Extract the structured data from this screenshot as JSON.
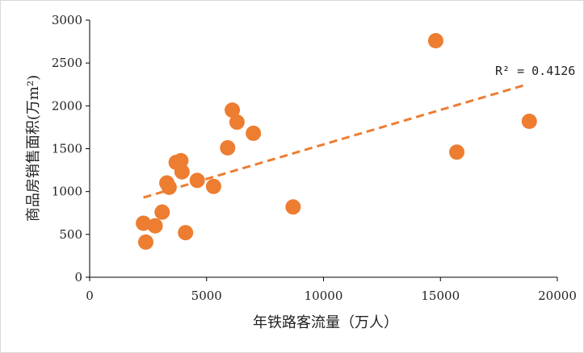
{
  "chart_data": {
    "type": "scatter",
    "xlabel": "年铁路客流量（万人）",
    "ylabel": "商品房销售面积(万m²)",
    "xlim": [
      0,
      20000
    ],
    "ylim": [
      0,
      3000
    ],
    "xticks": [
      0,
      5000,
      10000,
      15000,
      20000
    ],
    "yticks": [
      0,
      500,
      1000,
      1500,
      2000,
      2500,
      3000
    ],
    "point_color": "#ED7D31",
    "trendline_color": "#ED7D31",
    "grid": false,
    "legend": "none",
    "annotation": "R² = 0.4126",
    "trendline": {
      "x": [
        2300,
        18700
      ],
      "y": [
        930,
        2250
      ]
    },
    "x": [
      2300,
      2400,
      2800,
      3100,
      3300,
      3400,
      3700,
      3900,
      3950,
      4100,
      4600,
      5300,
      5900,
      6100,
      6300,
      7000,
      8700,
      14800,
      15700,
      18800
    ],
    "y": [
      630,
      410,
      600,
      760,
      1100,
      1050,
      1340,
      1360,
      1230,
      520,
      1130,
      1060,
      1510,
      1950,
      1810,
      1680,
      820,
      2760,
      1460,
      1820
    ]
  }
}
